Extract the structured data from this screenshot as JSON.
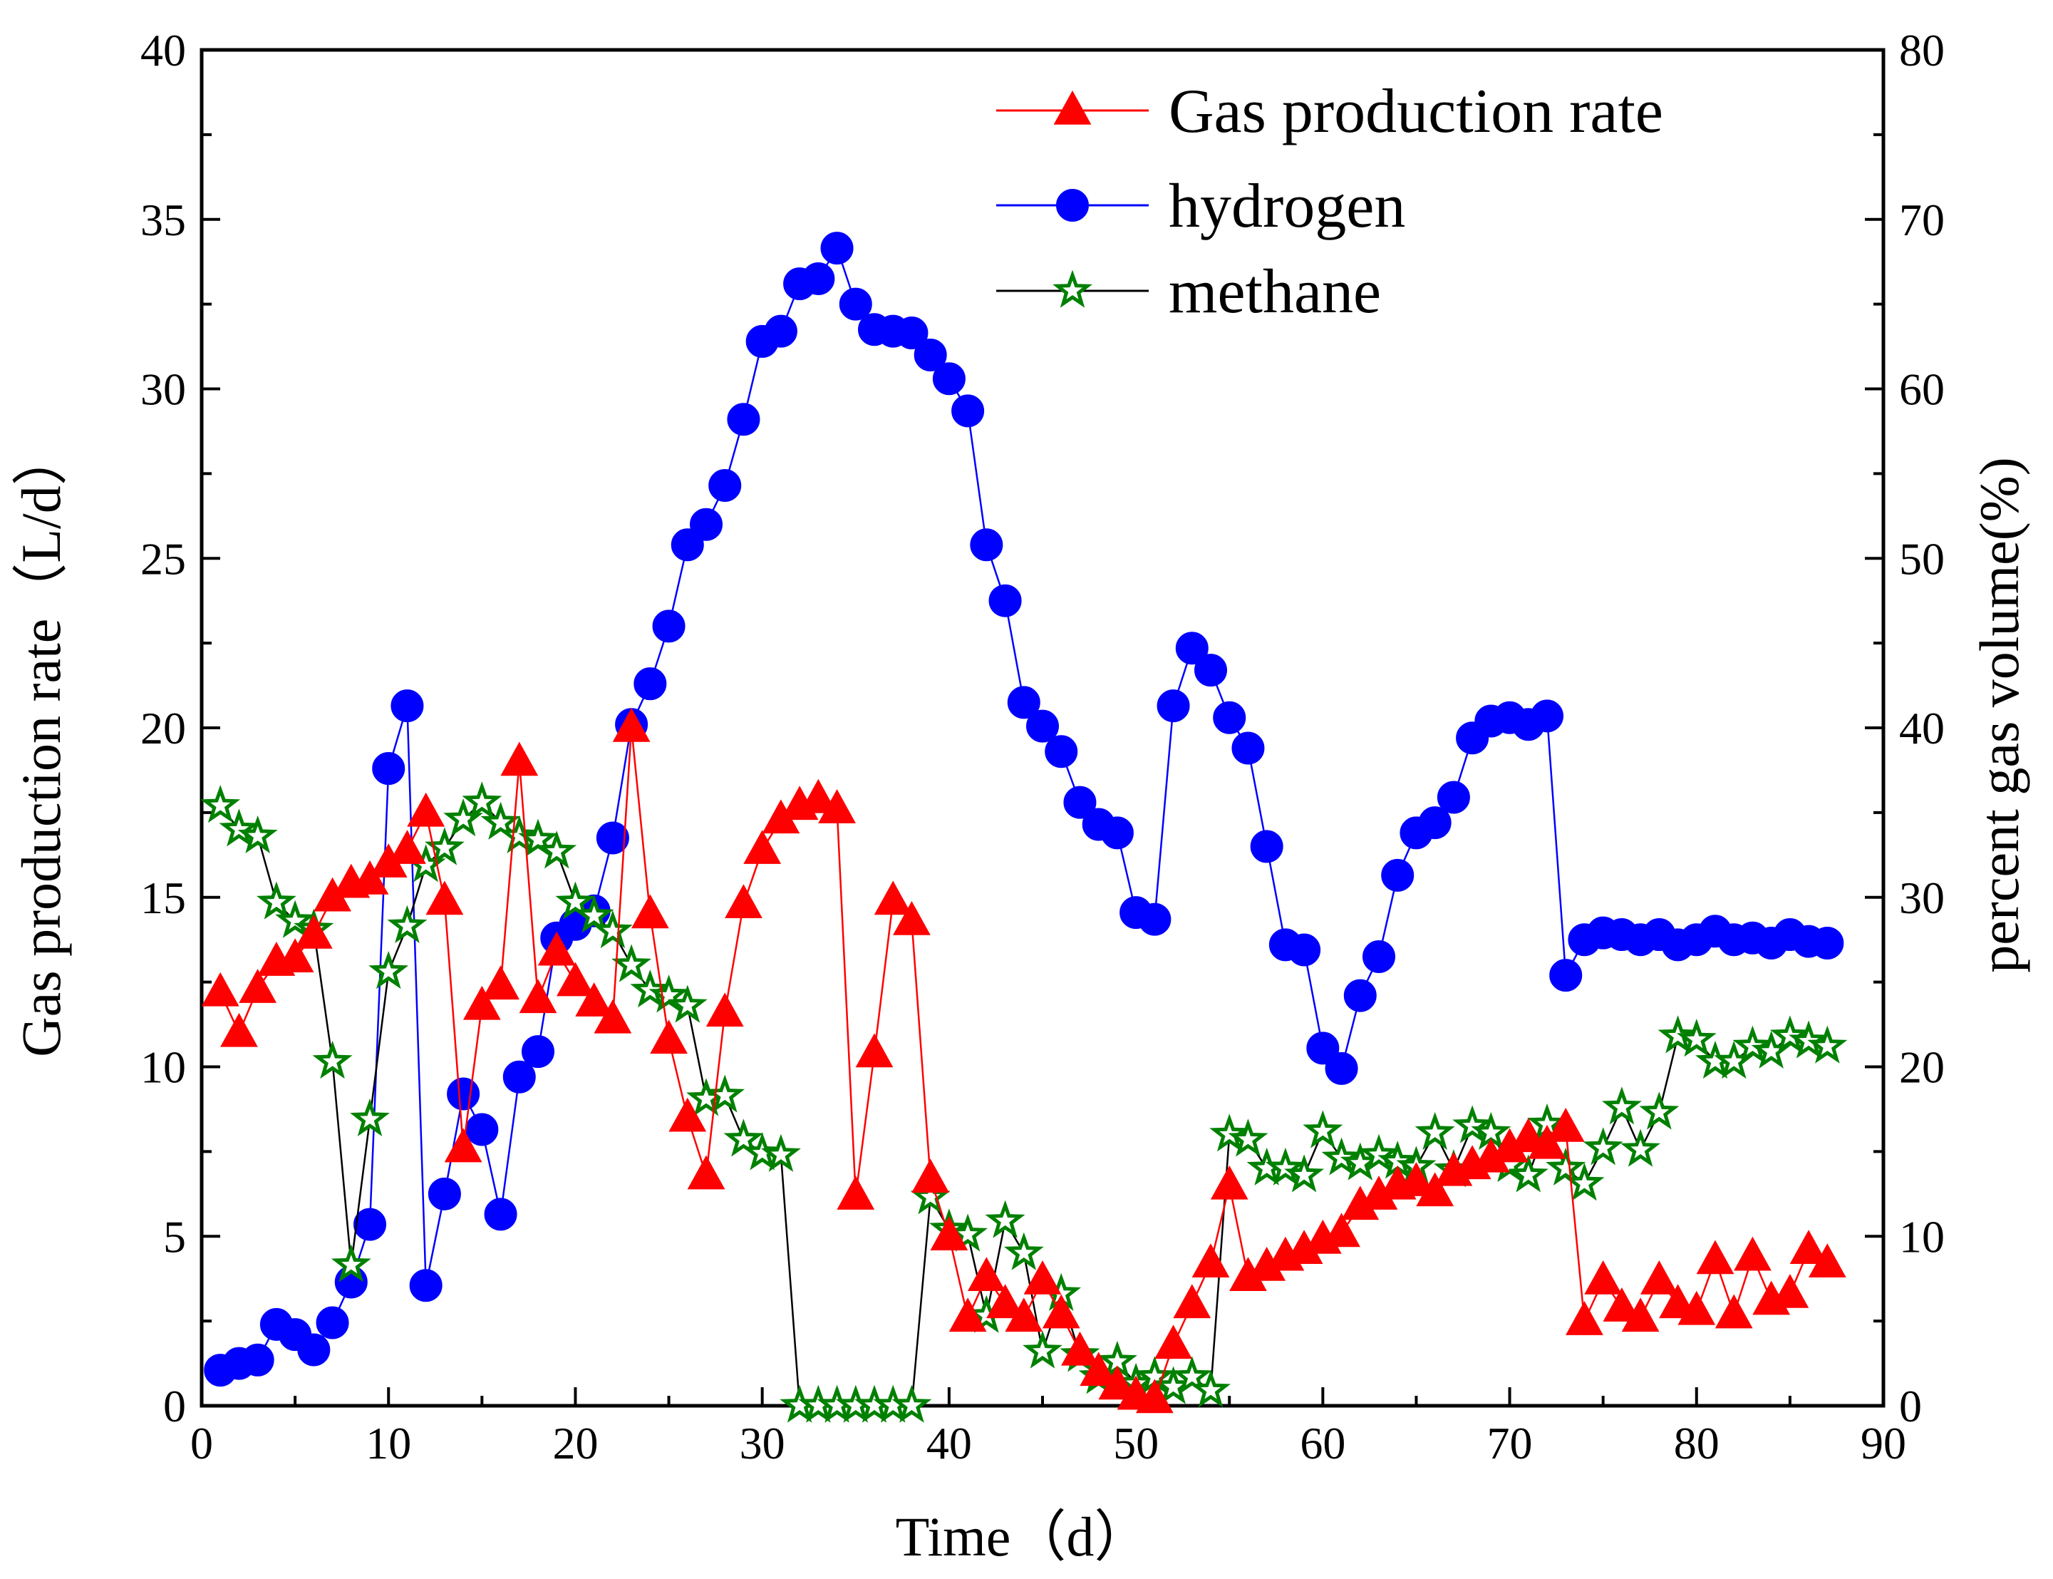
{
  "chart_data": {
    "type": "line",
    "title": "",
    "xlabel": "Time（d）",
    "ylabel": "Gas production rate（L/d）",
    "ylabel_right": "percent gas volume(%)",
    "xlim": [
      0,
      90
    ],
    "ylim": [
      0,
      40
    ],
    "ylim_right": [
      0,
      80
    ],
    "x_ticks": [
      "0",
      "10",
      "20",
      "30",
      "40",
      "50",
      "60",
      "70",
      "80",
      "90"
    ],
    "y_ticks": [
      "0",
      "5",
      "10",
      "15",
      "20",
      "25",
      "30",
      "35",
      "40"
    ],
    "y_ticks_right": [
      "0",
      "10",
      "20",
      "30",
      "40",
      "50",
      "60",
      "70",
      "80"
    ],
    "grid": false,
    "legend_position": "top-center",
    "series": [
      {
        "name": "Gas production rate",
        "axis": "left",
        "color": "#ff0000",
        "marker": "triangle",
        "x": [
          1,
          2,
          3,
          4,
          5,
          6,
          7,
          8,
          9,
          10,
          11,
          12,
          13,
          14,
          15,
          16,
          17,
          18,
          19,
          20,
          21,
          22,
          23,
          24,
          25,
          26,
          27,
          28,
          29,
          30,
          31,
          32,
          33,
          34,
          35,
          36,
          37,
          38,
          39,
          40,
          41,
          42,
          43,
          44,
          45,
          46,
          47,
          48,
          49,
          50,
          51,
          52,
          53,
          54,
          55,
          56,
          57,
          58,
          59,
          60,
          61,
          62,
          63,
          64,
          65,
          66,
          67,
          68,
          69,
          70,
          71,
          72,
          73,
          74,
          75,
          76,
          77,
          78,
          79,
          80,
          81,
          82,
          83,
          84,
          85,
          86,
          87
        ],
        "values": [
          12.2,
          11.0,
          12.3,
          13.1,
          13.2,
          13.9,
          15.0,
          15.4,
          15.5,
          16.0,
          16.4,
          17.5,
          14.9,
          7.6,
          11.8,
          12.4,
          19.0,
          12.0,
          13.4,
          12.5,
          11.9,
          11.4,
          20.0,
          14.5,
          10.8,
          8.5,
          6.8,
          11.6,
          14.8,
          16.4,
          17.3,
          17.7,
          17.9,
          17.6,
          6.2,
          10.4,
          14.9,
          14.3,
          6.7,
          5.0,
          2.6,
          3.8,
          3.0,
          2.6,
          3.7,
          2.7,
          1.6,
          1.0,
          0.6,
          0.3,
          0.2,
          1.8,
          3.0,
          4.2,
          6.5,
          3.8,
          4.1,
          4.4,
          4.6,
          4.9,
          5.1,
          5.9,
          6.2,
          6.5,
          6.6,
          6.3,
          6.9,
          7.1,
          7.3,
          7.6,
          7.9,
          7.7,
          8.2,
          2.5,
          3.7,
          2.9,
          2.6,
          3.7,
          3.0,
          2.8,
          4.3,
          2.7,
          4.4,
          3.1,
          3.3,
          4.6,
          4.2
        ]
      },
      {
        "name": "hydrogen",
        "axis": "right",
        "color": "#0000ff",
        "marker": "circle",
        "x": [
          1,
          2,
          3,
          4,
          5,
          6,
          7,
          8,
          9,
          10,
          11,
          12,
          13,
          14,
          15,
          16,
          17,
          18,
          19,
          20,
          21,
          22,
          23,
          24,
          25,
          26,
          27,
          28,
          29,
          30,
          31,
          32,
          33,
          34,
          35,
          36,
          37,
          38,
          39,
          40,
          41,
          42,
          43,
          44,
          45,
          46,
          47,
          48,
          49,
          50,
          51,
          52,
          53,
          54,
          55,
          56,
          57,
          58,
          59,
          60,
          61,
          62,
          63,
          64,
          65,
          66,
          67,
          68,
          69,
          70,
          71,
          72,
          73,
          74,
          75,
          76,
          77,
          78,
          79,
          80,
          81,
          82,
          83,
          84,
          85,
          86,
          87
        ],
        "values": [
          2.1,
          2.5,
          2.7,
          4.8,
          4.2,
          3.3,
          4.9,
          7.3,
          10.7,
          37.6,
          41.3,
          7.1,
          12.5,
          18.4,
          16.3,
          11.3,
          19.4,
          20.9,
          27.6,
          28.4,
          29.2,
          33.5,
          40.2,
          42.6,
          46.0,
          50.8,
          52.0,
          54.3,
          58.2,
          62.8,
          63.4,
          66.2,
          66.5,
          68.3,
          65.0,
          63.5,
          63.4,
          63.3,
          62.0,
          60.6,
          58.7,
          50.8,
          47.5,
          41.5,
          40.1,
          38.6,
          35.6,
          34.3,
          33.8,
          29.1,
          28.7,
          41.3,
          44.7,
          43.4,
          40.6,
          38.8,
          33.0,
          27.2,
          26.9,
          21.1,
          19.9,
          24.2,
          26.5,
          31.3,
          33.8,
          34.4,
          35.9,
          39.4,
          40.4,
          40.6,
          40.2,
          40.7,
          25.4,
          27.5,
          27.9,
          27.8,
          27.5,
          27.8,
          27.2,
          27.5,
          28.0,
          27.5,
          27.6,
          27.3,
          27.8,
          27.4,
          27.3
        ]
      },
      {
        "name": "methane",
        "axis": "right",
        "color": "#008000",
        "marker": "star",
        "x": [
          1,
          2,
          3,
          4,
          5,
          6,
          7,
          8,
          9,
          10,
          11,
          12,
          13,
          14,
          15,
          16,
          17,
          18,
          19,
          20,
          21,
          22,
          23,
          24,
          25,
          26,
          27,
          28,
          29,
          30,
          31,
          32,
          33,
          34,
          35,
          36,
          37,
          38,
          39,
          40,
          41,
          42,
          43,
          44,
          45,
          46,
          47,
          48,
          49,
          50,
          51,
          52,
          53,
          54,
          55,
          56,
          57,
          58,
          59,
          60,
          61,
          62,
          63,
          64,
          65,
          66,
          67,
          68,
          69,
          70,
          71,
          72,
          73,
          74,
          75,
          76,
          77,
          78,
          79,
          80,
          81,
          82,
          83,
          84,
          85,
          86,
          87
        ],
        "values": [
          35.4,
          34.0,
          33.6,
          29.7,
          28.6,
          28.1,
          20.3,
          8.3,
          16.9,
          25.6,
          28.3,
          31.9,
          32.9,
          34.6,
          35.6,
          34.4,
          33.6,
          33.4,
          32.7,
          29.7,
          28.9,
          28.0,
          26.0,
          24.5,
          24.2,
          23.6,
          18.1,
          18.3,
          15.7,
          14.9,
          14.8,
          0.0,
          0.0,
          0.0,
          0.0,
          0.0,
          0.0,
          0.0,
          12.3,
          10.4,
          10.1,
          5.3,
          10.9,
          9.0,
          3.2,
          6.6,
          3.0,
          1.7,
          2.6,
          1.3,
          1.7,
          1.1,
          1.7,
          0.9,
          16.0,
          15.7,
          14.0,
          14.0,
          13.6,
          16.2,
          14.6,
          14.3,
          14.8,
          14.4,
          14.1,
          16.1,
          13.9,
          16.5,
          16.1,
          14.2,
          13.6,
          16.6,
          14.0,
          13.1,
          15.2,
          17.6,
          15.1,
          17.3,
          21.8,
          21.6,
          20.3,
          20.3,
          21.2,
          20.9,
          21.8,
          21.5,
          21.2
        ]
      }
    ]
  }
}
